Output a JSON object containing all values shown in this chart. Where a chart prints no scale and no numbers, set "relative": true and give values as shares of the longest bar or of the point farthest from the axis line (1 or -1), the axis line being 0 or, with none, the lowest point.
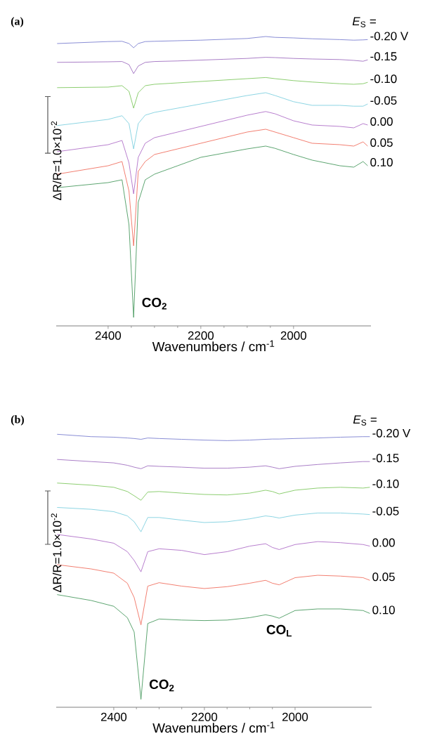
{
  "chart_data": [
    {
      "type": "line",
      "title": "(a)",
      "legend_title": "*E*$_{S}$ =",
      "xlabel": "Wavenumbers / cm$^{-1}$",
      "ylabel": "ΔR/R=1.0×10$^{-2}$",
      "relative": true,
      "x": [
        2510,
        2400,
        2370,
        2355,
        2345,
        2335,
        2320,
        2300,
        2250,
        2200,
        2150,
        2100,
        2060,
        2040,
        2000,
        1960,
        1900,
        1870,
        1850,
        1840
      ],
      "xlim": [
        2512,
        1833
      ],
      "xticks": [
        2400,
        2200,
        2000
      ],
      "annotations": [
        {
          "text": "CO$_{2}$",
          "x": 2345,
          "y": 0
        }
      ],
      "series": [
        {
          "name": "-0.20 V",
          "color": "#7b7fd0",
          "values": [
            0.975,
            0.982,
            0.983,
            0.975,
            0.96,
            0.975,
            0.982,
            0.983,
            0.985,
            0.987,
            0.99,
            0.993,
            1.0,
            0.997,
            0.995,
            0.992,
            0.989,
            0.987,
            0.988,
            0.989
          ]
        },
        {
          "name": "-0.15",
          "color": "#a070c0",
          "values": [
            0.908,
            0.91,
            0.911,
            0.9,
            0.868,
            0.895,
            0.908,
            0.911,
            0.913,
            0.916,
            0.919,
            0.922,
            0.926,
            0.925,
            0.922,
            0.92,
            0.918,
            0.915,
            0.912,
            0.917
          ]
        },
        {
          "name": "-0.10",
          "color": "#80c860",
          "values": [
            0.818,
            0.82,
            0.825,
            0.805,
            0.745,
            0.8,
            0.825,
            0.83,
            0.835,
            0.84,
            0.845,
            0.85,
            0.854,
            0.85,
            0.843,
            0.838,
            0.832,
            0.83,
            0.832,
            0.837
          ]
        },
        {
          "name": "-0.05",
          "color": "#80d0e0",
          "values": [
            0.683,
            0.705,
            0.718,
            0.69,
            0.6,
            0.69,
            0.72,
            0.73,
            0.745,
            0.76,
            0.775,
            0.79,
            0.8,
            0.79,
            0.768,
            0.755,
            0.755,
            0.752,
            0.752,
            0.76
          ]
        },
        {
          "name": "0.00",
          "color": "#b070c8",
          "values": [
            0.59,
            0.615,
            0.63,
            0.55,
            0.44,
            0.57,
            0.62,
            0.64,
            0.66,
            0.68,
            0.7,
            0.72,
            0.733,
            0.725,
            0.7,
            0.685,
            0.68,
            0.675,
            0.69,
            0.685
          ]
        },
        {
          "name": "0.05",
          "color": "#f07060",
          "values": [
            0.51,
            0.54,
            0.555,
            0.45,
            0.255,
            0.52,
            0.555,
            0.58,
            0.6,
            0.62,
            0.64,
            0.66,
            0.67,
            0.66,
            0.64,
            0.62,
            0.615,
            0.61,
            0.625,
            0.61
          ]
        },
        {
          "name": "0.10",
          "color": "#4a9a60",
          "values": [
            0.462,
            0.48,
            0.49,
            0.33,
            0.0,
            0.41,
            0.49,
            0.51,
            0.54,
            0.57,
            0.585,
            0.6,
            0.61,
            0.602,
            0.58,
            0.56,
            0.54,
            0.535,
            0.555,
            0.54
          ]
        }
      ]
    },
    {
      "type": "line",
      "title": "(b)",
      "legend_title": "*E*$_{S}$ =",
      "xlabel": "Wavenumbers / cm$^{-1}$",
      "ylabel": "ΔR/R=1.0×10$^{-2}$",
      "relative": true,
      "x": [
        2525,
        2450,
        2400,
        2370,
        2355,
        2340,
        2325,
        2300,
        2250,
        2200,
        2150,
        2100,
        2065,
        2050,
        2035,
        2000,
        1950,
        1900,
        1850,
        1835
      ],
      "xlim": [
        2527,
        1831
      ],
      "xticks": [
        2400,
        2200,
        2000
      ],
      "annotations": [
        {
          "text": "CO$_{2}$",
          "x": 2340,
          "y": 0
        },
        {
          "text": "CO$_{L}$",
          "x": 2035,
          "y": 0.306
        }
      ],
      "series": [
        {
          "name": "-0.20 V",
          "color": "#7b7fd0",
          "values": [
            1.0,
            0.991,
            0.989,
            0.986,
            0.984,
            0.981,
            0.986,
            0.984,
            0.981,
            0.978,
            0.976,
            0.978,
            0.981,
            0.982,
            0.982,
            0.984,
            0.986,
            0.989,
            0.991,
            0.991
          ]
        },
        {
          "name": "-0.15",
          "color": "#a070c0",
          "values": [
            0.905,
            0.897,
            0.892,
            0.883,
            0.876,
            0.87,
            0.881,
            0.879,
            0.876,
            0.872,
            0.872,
            0.876,
            0.881,
            0.876,
            0.87,
            0.879,
            0.886,
            0.892,
            0.897,
            0.897
          ]
        },
        {
          "name": "-0.10",
          "color": "#80c860",
          "values": [
            0.816,
            0.808,
            0.8,
            0.784,
            0.768,
            0.751,
            0.782,
            0.784,
            0.778,
            0.773,
            0.771,
            0.778,
            0.789,
            0.784,
            0.775,
            0.789,
            0.797,
            0.8,
            0.797,
            0.8
          ]
        },
        {
          "name": "-0.05",
          "color": "#80d0e0",
          "values": [
            0.724,
            0.717,
            0.708,
            0.692,
            0.67,
            0.632,
            0.686,
            0.686,
            0.676,
            0.667,
            0.67,
            0.681,
            0.692,
            0.689,
            0.684,
            0.695,
            0.703,
            0.703,
            0.699,
            0.697
          ]
        },
        {
          "name": "0.00",
          "color": "#b070c8",
          "values": [
            0.622,
            0.605,
            0.589,
            0.557,
            0.524,
            0.481,
            0.557,
            0.568,
            0.562,
            0.546,
            0.557,
            0.578,
            0.587,
            0.573,
            0.565,
            0.584,
            0.595,
            0.591,
            0.584,
            0.578
          ]
        },
        {
          "name": "0.05",
          "color": "#f07060",
          "values": [
            0.508,
            0.492,
            0.476,
            0.438,
            0.384,
            0.281,
            0.427,
            0.44,
            0.427,
            0.418,
            0.425,
            0.438,
            0.449,
            0.438,
            0.432,
            0.459,
            0.468,
            0.465,
            0.459,
            0.449
          ]
        },
        {
          "name": "0.10",
          "color": "#4a9a60",
          "values": [
            0.395,
            0.373,
            0.351,
            0.308,
            0.254,
            0.0,
            0.286,
            0.303,
            0.299,
            0.297,
            0.299,
            0.308,
            0.319,
            0.314,
            0.306,
            0.335,
            0.341,
            0.341,
            0.335,
            0.324
          ]
        }
      ]
    }
  ]
}
